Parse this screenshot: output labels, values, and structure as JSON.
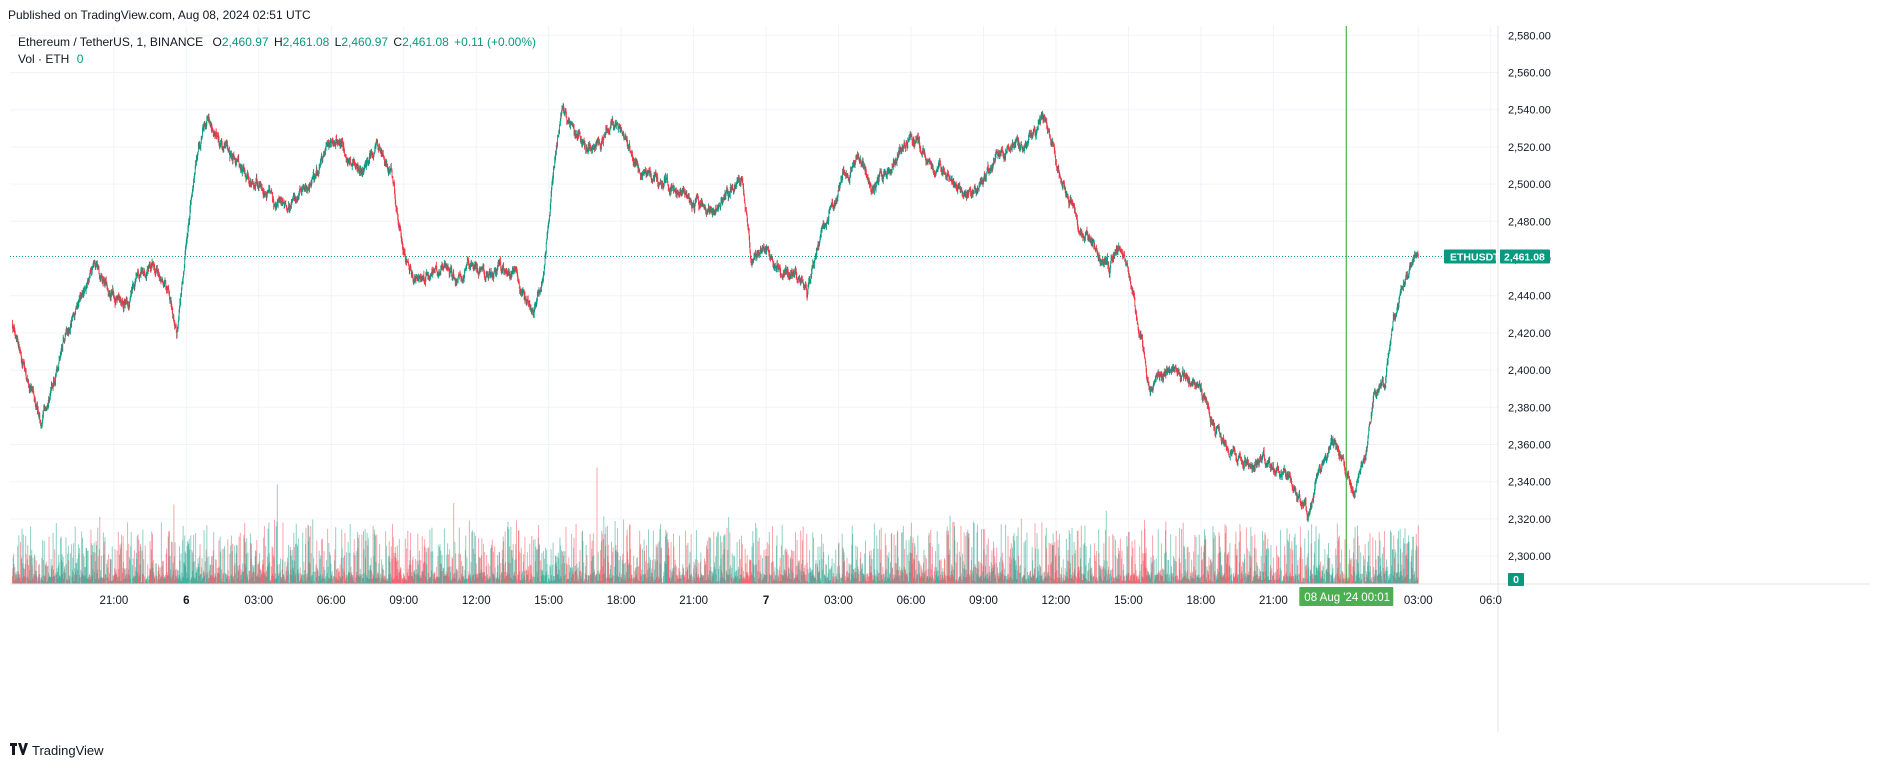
{
  "header": {
    "published": "Published on TradingView.com, Aug 08, 2024 02:51 UTC"
  },
  "legend": {
    "symbol": "Ethereum / TetherUS, 1, BINANCE",
    "o_label": "O",
    "o_value": "2,460.97",
    "h_label": "H",
    "h_value": "2,461.08",
    "l_label": "L",
    "l_value": "2,460.97",
    "c_label": "C",
    "c_value": "2,461.08",
    "change": "+0.11 (+0.00%)",
    "vol_label": "Vol · ETH",
    "vol_value": "0"
  },
  "footer": {
    "brand": "TradingView",
    "logo_icon": "tradingview-logo-icon"
  },
  "colors": {
    "up": "#089981",
    "down": "#f23645",
    "crosshair": "#4caf50",
    "grid": "#f0f3fa",
    "axis_text": "#131722"
  },
  "chart_data": {
    "type": "candlestick",
    "symbol": "ETHUSDT",
    "last_price": 2461.08,
    "last_price_label": "2,461.08",
    "ylim": [
      2285,
      2585
    ],
    "y_ticks": [
      2300,
      2320,
      2340,
      2360,
      2380,
      2400,
      2420,
      2440,
      2460,
      2480,
      2500,
      2520,
      2540,
      2560,
      2580
    ],
    "y_tick_labels": [
      "2,300.00",
      "2,320.00",
      "2,340.00",
      "2,360.00",
      "2,380.00",
      "2,400.00",
      "2,420.00",
      "2,440.00",
      "2,460.00",
      "2,480.00",
      "2,500.00",
      "2,520.00",
      "2,540.00",
      "2,560.00",
      "2,580.00"
    ],
    "x_ticks": [
      "21:00",
      "6",
      "03:00",
      "06:00",
      "09:00",
      "12:00",
      "15:00",
      "18:00",
      "21:00",
      "7",
      "03:00",
      "06:00",
      "09:00",
      "12:00",
      "15:00",
      "18:00",
      "21:00",
      "00:01",
      "03:00",
      "06:0"
    ],
    "x_tick_hours": [
      0,
      3,
      6,
      9,
      12,
      15,
      18,
      21,
      24,
      27,
      30,
      33,
      36,
      39,
      42,
      45,
      48,
      51,
      54,
      57
    ],
    "x_tick_bold": [
      false,
      true,
      false,
      false,
      false,
      false,
      false,
      false,
      false,
      true,
      false,
      false,
      false,
      false,
      false,
      false,
      false,
      false,
      false,
      false
    ],
    "x_range_hours": [
      -4.3,
      57.3
    ],
    "crosshair": {
      "hour": 51.02,
      "date_label": "08 Aug '24",
      "time_label": "00:01"
    },
    "volume_axis_label": "0",
    "price_path": [
      [
        -4.2,
        2425
      ],
      [
        -3.6,
        2395
      ],
      [
        -3.0,
        2370
      ],
      [
        -2.5,
        2395
      ],
      [
        -2.0,
        2420
      ],
      [
        -1.4,
        2440
      ],
      [
        -0.8,
        2455
      ],
      [
        -0.3,
        2445
      ],
      [
        0.4,
        2435
      ],
      [
        1.0,
        2450
      ],
      [
        1.6,
        2458
      ],
      [
        2.1,
        2448
      ],
      [
        2.6,
        2418
      ],
      [
        3.0,
        2470
      ],
      [
        3.4,
        2515
      ],
      [
        3.8,
        2535
      ],
      [
        4.3,
        2528
      ],
      [
        4.9,
        2515
      ],
      [
        5.5,
        2505
      ],
      [
        6.1,
        2500
      ],
      [
        6.7,
        2490
      ],
      [
        7.3,
        2488
      ],
      [
        7.9,
        2495
      ],
      [
        8.4,
        2505
      ],
      [
        8.8,
        2520
      ],
      [
        9.3,
        2525
      ],
      [
        9.8,
        2512
      ],
      [
        10.4,
        2508
      ],
      [
        10.9,
        2522
      ],
      [
        11.5,
        2505
      ],
      [
        12.0,
        2465
      ],
      [
        12.4,
        2450
      ],
      [
        13.0,
        2452
      ],
      [
        13.6,
        2455
      ],
      [
        14.2,
        2448
      ],
      [
        14.8,
        2455
      ],
      [
        15.4,
        2452
      ],
      [
        16.0,
        2455
      ],
      [
        16.6,
        2450
      ],
      [
        17.0,
        2438
      ],
      [
        17.4,
        2430
      ],
      [
        17.8,
        2455
      ],
      [
        18.2,
        2510
      ],
      [
        18.6,
        2540
      ],
      [
        19.1,
        2525
      ],
      [
        19.6,
        2520
      ],
      [
        20.1,
        2522
      ],
      [
        20.6,
        2535
      ],
      [
        21.2,
        2522
      ],
      [
        21.8,
        2508
      ],
      [
        22.4,
        2502
      ],
      [
        23.0,
        2498
      ],
      [
        23.6,
        2495
      ],
      [
        24.2,
        2488
      ],
      [
        24.8,
        2485
      ],
      [
        25.4,
        2495
      ],
      [
        26.0,
        2502
      ],
      [
        26.4,
        2460
      ],
      [
        27.0,
        2465
      ],
      [
        27.6,
        2455
      ],
      [
        28.2,
        2452
      ],
      [
        28.7,
        2440
      ],
      [
        29.1,
        2465
      ],
      [
        29.6,
        2485
      ],
      [
        30.2,
        2505
      ],
      [
        30.8,
        2515
      ],
      [
        31.4,
        2498
      ],
      [
        32.0,
        2505
      ],
      [
        32.6,
        2520
      ],
      [
        33.2,
        2525
      ],
      [
        33.8,
        2510
      ],
      [
        34.4,
        2505
      ],
      [
        35.0,
        2498
      ],
      [
        35.6,
        2495
      ],
      [
        36.2,
        2505
      ],
      [
        36.8,
        2518
      ],
      [
        37.4,
        2520
      ],
      [
        38.0,
        2525
      ],
      [
        38.4,
        2535
      ],
      [
        38.8,
        2520
      ],
      [
        39.4,
        2495
      ],
      [
        40.0,
        2475
      ],
      [
        40.6,
        2465
      ],
      [
        41.2,
        2455
      ],
      [
        41.7,
        2470
      ],
      [
        42.1,
        2445
      ],
      [
        42.5,
        2420
      ],
      [
        42.9,
        2385
      ],
      [
        43.4,
        2398
      ],
      [
        43.9,
        2402
      ],
      [
        44.5,
        2395
      ],
      [
        45.0,
        2390
      ],
      [
        45.5,
        2372
      ],
      [
        46.0,
        2360
      ],
      [
        46.5,
        2352
      ],
      [
        47.0,
        2350
      ],
      [
        47.5,
        2352
      ],
      [
        48.0,
        2348
      ],
      [
        48.5,
        2345
      ],
      [
        49.0,
        2335
      ],
      [
        49.4,
        2322
      ],
      [
        49.9,
        2350
      ],
      [
        50.4,
        2360
      ],
      [
        50.9,
        2350
      ],
      [
        51.3,
        2335
      ],
      [
        51.8,
        2355
      ],
      [
        52.2,
        2390
      ],
      [
        52.6,
        2392
      ],
      [
        53.0,
        2430
      ],
      [
        53.4,
        2450
      ],
      [
        53.8,
        2460
      ],
      [
        54.0,
        2461
      ]
    ]
  }
}
